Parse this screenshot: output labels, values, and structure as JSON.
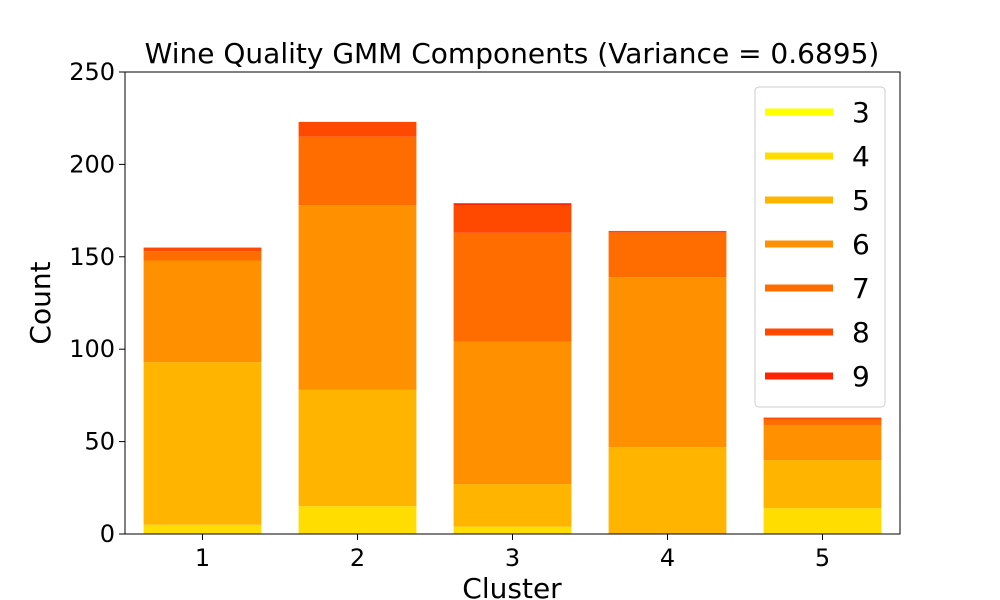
{
  "chart_data": {
    "type": "bar",
    "stacked": true,
    "title": "Wine Quality GMM Components (Variance = 0.6895)",
    "xlabel": "Cluster",
    "ylabel": "Count",
    "categories": [
      "1",
      "2",
      "3",
      "4",
      "5"
    ],
    "ylim": [
      0,
      250
    ],
    "yticks": [
      "0",
      "50",
      "100",
      "150",
      "200",
      "250"
    ],
    "grid": false,
    "legend_position": "top-right",
    "series": [
      {
        "name": "3",
        "color": "#ffff00",
        "values": [
          0,
          0,
          0,
          0,
          0
        ]
      },
      {
        "name": "4",
        "color": "#ffdd00",
        "values": [
          5,
          15,
          4,
          0,
          14
        ]
      },
      {
        "name": "5",
        "color": "#ffb400",
        "values": [
          88,
          63,
          23,
          47,
          26
        ]
      },
      {
        "name": "6",
        "color": "#ff9000",
        "values": [
          55,
          100,
          77,
          92,
          19
        ]
      },
      {
        "name": "7",
        "color": "#ff6d00",
        "values": [
          5,
          37,
          59,
          24,
          3
        ]
      },
      {
        "name": "8",
        "color": "#ff4800",
        "values": [
          2,
          8,
          15,
          1,
          1
        ]
      },
      {
        "name": "9",
        "color": "#ff2400",
        "values": [
          0,
          0,
          1,
          0,
          0
        ]
      }
    ]
  }
}
